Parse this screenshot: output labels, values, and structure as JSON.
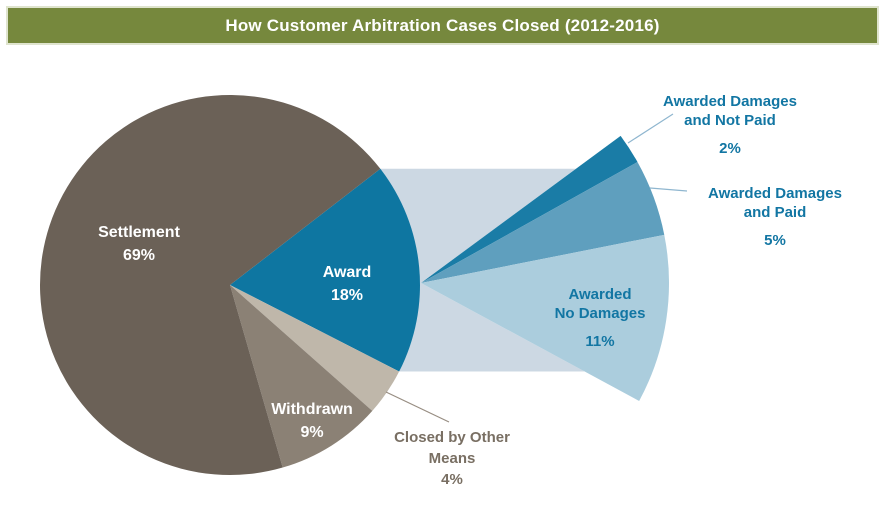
{
  "header": {
    "title": "How Customer Arbitration Cases Closed (2012-2016)"
  },
  "colors": {
    "header_bg": "#76883D",
    "header_text": "#FFFFFF",
    "callout_text_blue": "#1276A3",
    "callout_text_brown": "#796F63",
    "callout_line_blue": "#8FB6CF",
    "callout_line_brown": "#978D82",
    "background": "#FFFFFF"
  },
  "chart_data": {
    "type": "pie",
    "title": "How Customer Arbitration Cases Closed (2012-2016)",
    "units": "percent",
    "legend_position": "none",
    "main_pie": {
      "slices": [
        {
          "label": "Award",
          "value": 18,
          "color": "#0E76A1",
          "text_color": "#FFFFFF"
        },
        {
          "label": "Closed by Other Means",
          "value": 4,
          "color": "#BFB7AA",
          "text_color": "#796F63"
        },
        {
          "label": "Withdrawn",
          "value": 9,
          "color": "#8B8175",
          "text_color": "#FFFFFF"
        },
        {
          "label": "Settlement",
          "value": 69,
          "color": "#6B6157",
          "text_color": "#FFFFFF"
        }
      ]
    },
    "breakout": {
      "of_label": "Award",
      "of_value": 18,
      "band_color": "#CCD8E3",
      "slices": [
        {
          "label": "Awarded Damages and Not Paid",
          "value": 2,
          "color": "#1A7CA6"
        },
        {
          "label": "Awarded Damages and Paid",
          "value": 5,
          "color": "#5F9FBE"
        },
        {
          "label": "Awarded No Damages",
          "value": 11,
          "color": "#ABCDDD"
        }
      ]
    }
  },
  "labels": {
    "settlement": {
      "line1": "Settlement",
      "line2": "69%"
    },
    "award": {
      "line1": "Award",
      "line2": "18%"
    },
    "withdrawn": {
      "line1": "Withdrawn",
      "line2": "9%"
    },
    "closed_other": {
      "line1": "Closed by Other",
      "line2": "Means",
      "line3": "4%"
    },
    "not_paid": {
      "line1": "Awarded Damages",
      "line2": "and Not Paid",
      "pct": "2%"
    },
    "paid": {
      "line1": "Awarded Damages",
      "line2": "and Paid",
      "pct": "5%"
    },
    "no_damages": {
      "line1": "Awarded",
      "line2": "No Damages",
      "pct": "11%"
    }
  }
}
